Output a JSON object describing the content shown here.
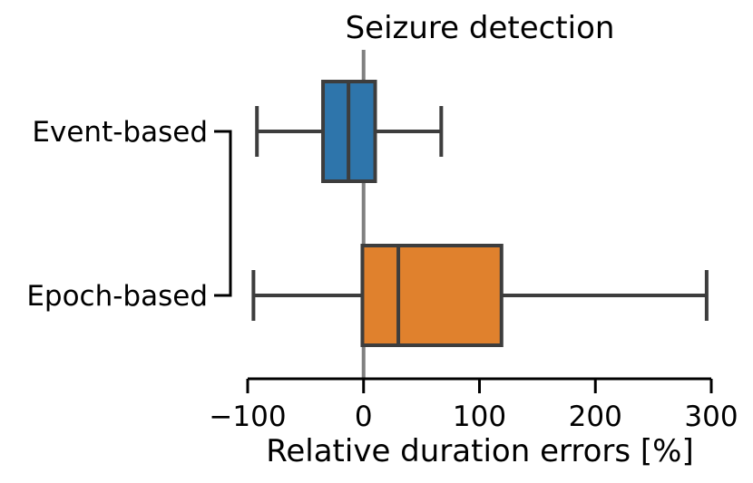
{
  "chart_data": {
    "type": "box",
    "title": "Seizure detection",
    "xlabel": "Relative duration errors [%]",
    "ylabel": "",
    "xlim": [
      -100,
      300
    ],
    "xticks": [
      -100,
      0,
      100,
      200,
      300
    ],
    "xtick_labels": [
      "−100",
      "0",
      "100",
      "200",
      "300"
    ],
    "reference_line_x": 0,
    "categories": [
      "Event-based",
      "Epoch-based"
    ],
    "boxes": [
      {
        "category": "Event-based",
        "whisker_low": -92,
        "q1": -35,
        "median": -13,
        "q3": 10,
        "whisker_high": 67,
        "color": "#2e75ab"
      },
      {
        "category": "Epoch-based",
        "whisker_low": -95,
        "q1": -1,
        "median": 30,
        "q3": 119,
        "whisker_high": 296,
        "color": "#e0812d"
      }
    ],
    "grid": false,
    "significance_bracket": true
  }
}
